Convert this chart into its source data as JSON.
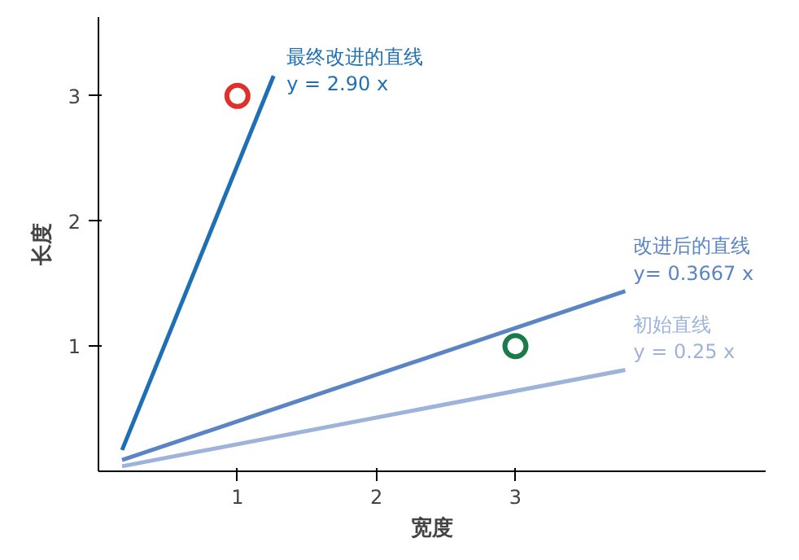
{
  "chart_data": {
    "type": "line",
    "xlabel": "宽度",
    "ylabel": "长度",
    "xlim": [
      0,
      4.8
    ],
    "ylim": [
      0,
      3.63
    ],
    "xticks": [
      1,
      2,
      3
    ],
    "yticks": [
      1,
      2,
      3
    ],
    "grid": false,
    "marker": "none",
    "line_style": "solid",
    "series": [
      {
        "name": "最终改进的直线\ny = 2.90 x",
        "color": "#1f6fb4",
        "x": [
          0.17,
          1.26
        ],
        "values": [
          0.17,
          3.16
        ]
      },
      {
        "name": "改进后的直线\ny= 0.3667 x",
        "color": "#5b84c4",
        "x": [
          0.17,
          3.79
        ],
        "values": [
          0.09,
          1.44
        ]
      },
      {
        "name": "初始直线\ny = 0.25 x",
        "color": "#9db3da",
        "x": [
          0.17,
          3.79
        ],
        "values": [
          0.04,
          0.81
        ]
      },
      {
        "type": "scatter",
        "marker": "circle",
        "color": "#e0302a",
        "x": [
          1
        ],
        "values": [
          3
        ]
      },
      {
        "type": "scatter",
        "marker": "circle",
        "color": "#1a7a4a",
        "x": [
          3
        ],
        "values": [
          1
        ]
      }
    ]
  }
}
